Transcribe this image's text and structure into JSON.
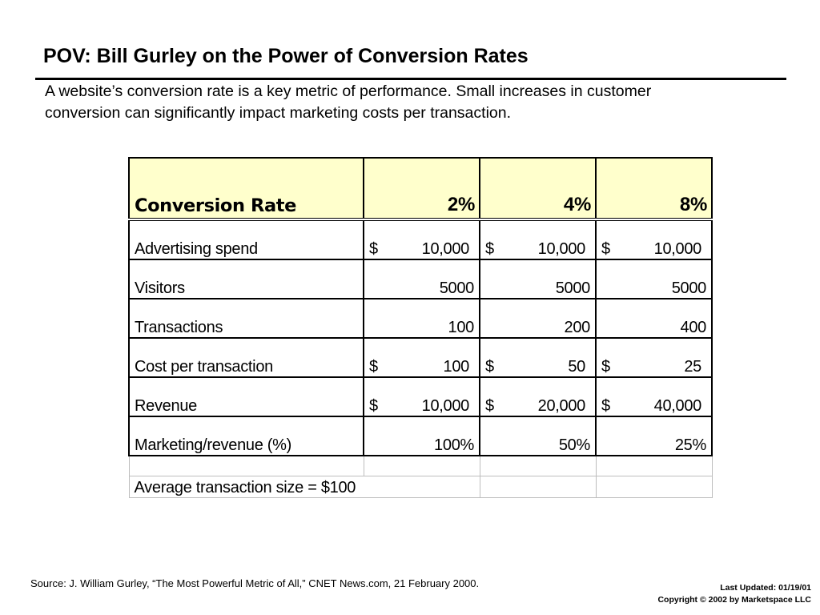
{
  "slide": {
    "title": "POV: Bill Gurley on the Power of Conversion Rates",
    "subtitle_line1": "A website’s conversion rate is a key metric of performance. Small increases in customer",
    "subtitle_line2": "conversion can significantly impact marketing costs per transaction."
  },
  "table": {
    "header": {
      "label": "Conversion Rate",
      "col1": "2%",
      "col2": "4%",
      "col3": "8%"
    },
    "rows": [
      {
        "label": "Advertising spend",
        "cells": [
          {
            "currency": "$",
            "value": "10,000"
          },
          {
            "currency": "$",
            "value": "10,000"
          },
          {
            "currency": "$",
            "value": "10,000"
          }
        ]
      },
      {
        "label": "Visitors",
        "cells": [
          {
            "currency": "",
            "value": "5000"
          },
          {
            "currency": "",
            "value": "5000"
          },
          {
            "currency": "",
            "value": "5000"
          }
        ]
      },
      {
        "label": "Transactions",
        "cells": [
          {
            "currency": "",
            "value": "100"
          },
          {
            "currency": "",
            "value": "200"
          },
          {
            "currency": "",
            "value": "400"
          }
        ]
      },
      {
        "label": "Cost per transaction",
        "cells": [
          {
            "currency": "$",
            "value": "100"
          },
          {
            "currency": "$",
            "value": "50"
          },
          {
            "currency": "$",
            "value": "25"
          }
        ]
      },
      {
        "label": "Revenue",
        "cells": [
          {
            "currency": "$",
            "value": "10,000"
          },
          {
            "currency": "$",
            "value": "20,000"
          },
          {
            "currency": "$",
            "value": "40,000"
          }
        ]
      },
      {
        "label": "Marketing/revenue (%)",
        "cells": [
          {
            "currency": "",
            "value": "100%"
          },
          {
            "currency": "",
            "value": "50%"
          },
          {
            "currency": "",
            "value": "25%"
          }
        ]
      }
    ],
    "note": "Average transaction size = $100"
  },
  "footer": {
    "source": "Source:  J. William Gurley, “The Most Powerful Metric of All,” CNET News.com, 21 February 2000.",
    "last_updated": "Last Updated: 01/19/01",
    "copyright": "Copyright © 2002 by Marketspace LLC"
  }
}
